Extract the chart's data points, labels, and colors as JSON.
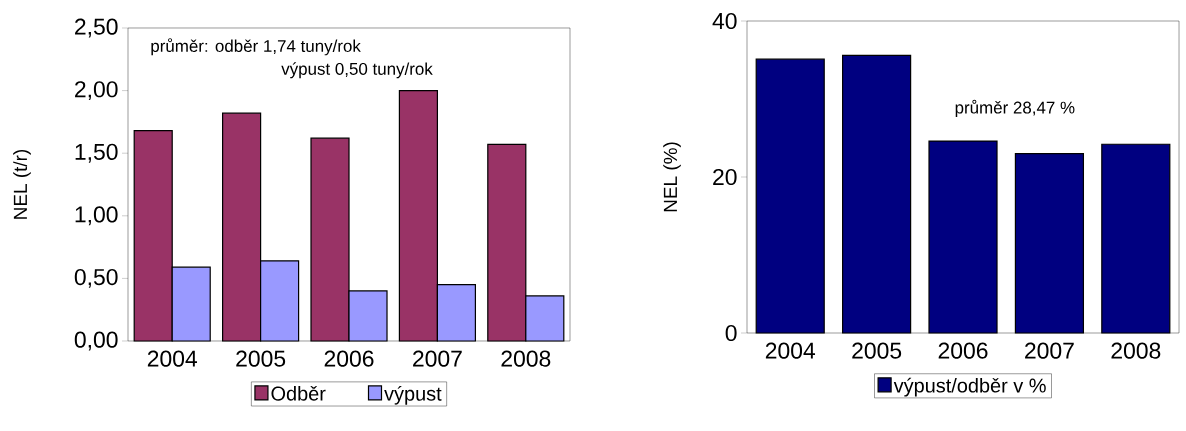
{
  "chart_data": [
    {
      "type": "bar",
      "ylabel": "NEL (t/r)",
      "categories": [
        "2004",
        "2005",
        "2006",
        "2007",
        "2008"
      ],
      "series": [
        {
          "name": "Odběr",
          "color": "#993366",
          "values": [
            1.68,
            1.82,
            1.62,
            2.0,
            1.57
          ]
        },
        {
          "name": "výpust",
          "color": "#9999ff",
          "values": [
            0.59,
            0.64,
            0.4,
            0.45,
            0.36
          ]
        }
      ],
      "ylim": [
        0,
        2.5
      ],
      "yticks": [
        {
          "value": 0,
          "label": "0,00"
        },
        {
          "value": 0.5,
          "label": "0,50"
        },
        {
          "value": 1,
          "label": "1,00"
        },
        {
          "value": 1.5,
          "label": "1,50"
        },
        {
          "value": 2,
          "label": "2,00"
        },
        {
          "value": 2.5,
          "label": "2,50"
        }
      ],
      "annotations": [
        "průměr: odběr  1,74 tuny/rok",
        "výpust  0,50 tuny/rok"
      ],
      "legend": "bottom"
    },
    {
      "type": "bar",
      "ylabel": "NEL (%)",
      "categories": [
        "2004",
        "2005",
        "2006",
        "2007",
        "2008"
      ],
      "series": [
        {
          "name": "výpust/odběr v %",
          "color": "#000080",
          "values": [
            35.1,
            35.6,
            24.6,
            23.0,
            24.2
          ]
        }
      ],
      "ylim": [
        0,
        40
      ],
      "yticks": [
        0,
        20,
        40
      ],
      "annotations": [
        "průměr 28,47 %"
      ],
      "legend": "bottom"
    }
  ]
}
